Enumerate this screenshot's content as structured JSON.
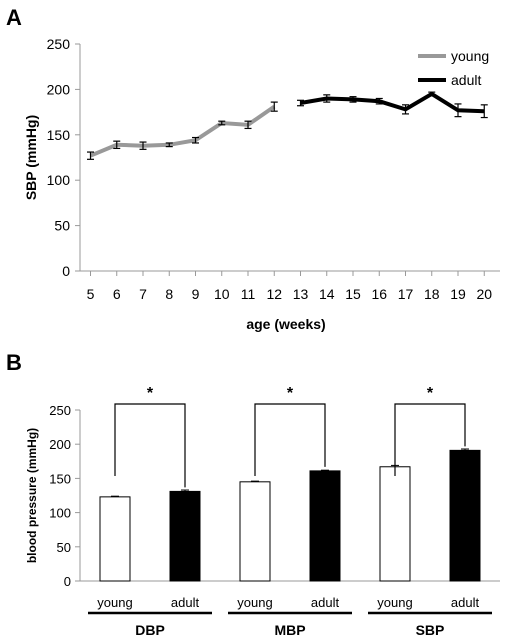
{
  "chart_data": [
    {
      "panel": "A",
      "type": "line",
      "xlabel": "age (weeks)",
      "ylabel": "SBP (mmHg)",
      "ylim": [
        0,
        250
      ],
      "yticks": [
        0,
        50,
        100,
        150,
        200,
        250
      ],
      "x": [
        5,
        6,
        7,
        8,
        9,
        10,
        11,
        12,
        13,
        14,
        15,
        16,
        17,
        18,
        19,
        20
      ],
      "legend_position": "top-right",
      "series": [
        {
          "name": "young",
          "color": "#999999",
          "x": [
            5,
            6,
            7,
            8,
            9,
            10,
            11,
            12
          ],
          "values": [
            127,
            139,
            138,
            139,
            144,
            163,
            161,
            181
          ],
          "errors": [
            4,
            4,
            4,
            2,
            3,
            2,
            4,
            5
          ]
        },
        {
          "name": "adult",
          "color": "#000000",
          "x": [
            13,
            14,
            15,
            16,
            17,
            18,
            19,
            20
          ],
          "values": [
            185,
            190,
            189,
            187,
            178,
            195,
            177,
            176
          ],
          "errors": [
            3,
            4,
            3,
            3,
            5,
            2,
            7,
            7
          ]
        }
      ]
    },
    {
      "panel": "B",
      "type": "bar",
      "ylabel": "blood pressure (mmHg)",
      "ylim": [
        0,
        250
      ],
      "yticks": [
        0,
        50,
        100,
        150,
        200,
        250
      ],
      "groups": [
        {
          "name": "DBP",
          "categories": [
            "young",
            "adult"
          ],
          "values": [
            123,
            131
          ],
          "errors": [
            1,
            2
          ],
          "significance": "*"
        },
        {
          "name": "MBP",
          "categories": [
            "young",
            "adult"
          ],
          "values": [
            145,
            161
          ],
          "errors": [
            1,
            1
          ],
          "significance": "*"
        },
        {
          "name": "SBP",
          "categories": [
            "young",
            "adult"
          ],
          "values": [
            167,
            191
          ],
          "errors": [
            2,
            2
          ],
          "significance": "*"
        }
      ],
      "colors": {
        "young": "#ffffff",
        "adult": "#000000"
      }
    }
  ]
}
